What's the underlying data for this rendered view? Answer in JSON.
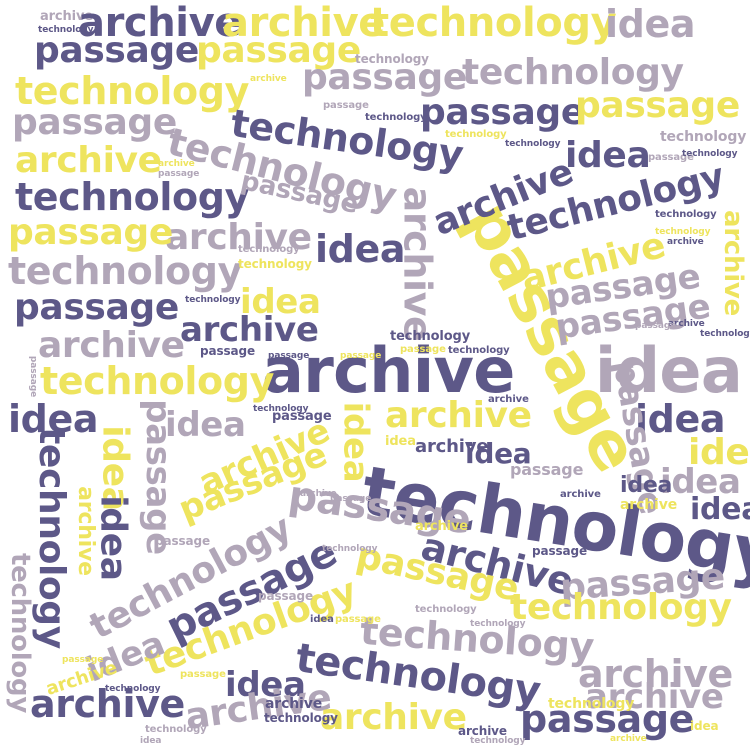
{
  "words": {
    "archive": "archive",
    "technology": "technology",
    "passage": "passage",
    "idea": "idea"
  },
  "palette": {
    "dark_purple": "#5d5888",
    "grey_mauve": "#b1a6b8",
    "yellow": "#eee45e",
    "background": "#ffffff"
  }
}
